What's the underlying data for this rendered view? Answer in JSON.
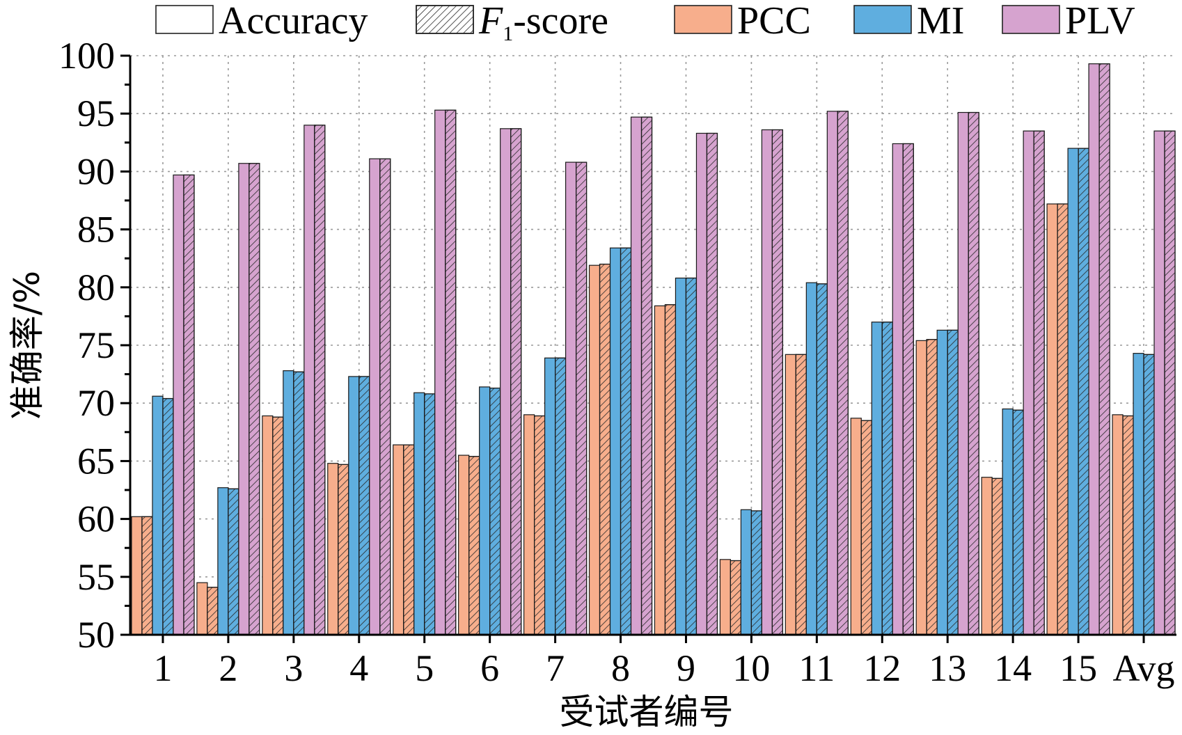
{
  "chart_data": {
    "type": "bar",
    "xlabel": "受试者编号",
    "ylabel": "准确率/%",
    "ylim": [
      50,
      100
    ],
    "yticks": [
      50,
      55,
      60,
      65,
      70,
      75,
      80,
      85,
      90,
      95,
      100
    ],
    "grid": true,
    "legend_position": "top",
    "categories": [
      "1",
      "2",
      "3",
      "4",
      "5",
      "6",
      "7",
      "8",
      "9",
      "10",
      "11",
      "12",
      "13",
      "14",
      "15",
      "Avg"
    ],
    "metrics": [
      {
        "name": "Accuracy",
        "pattern": "solid"
      },
      {
        "name": "F",
        "subscript": "1",
        "suffix": "-score",
        "pattern": "hatched"
      }
    ],
    "series": [
      {
        "name": "PCC",
        "color": "#F7AE8C",
        "accuracy": [
          60.2,
          54.5,
          68.9,
          64.8,
          66.4,
          65.5,
          69.0,
          81.9,
          78.4,
          56.5,
          74.2,
          68.7,
          75.4,
          63.6,
          87.2,
          69.0
        ],
        "f1_score": [
          60.2,
          54.1,
          68.8,
          64.7,
          66.4,
          65.4,
          68.9,
          82.0,
          78.5,
          56.4,
          74.2,
          68.5,
          75.5,
          63.5,
          87.2,
          68.9
        ]
      },
      {
        "name": "MI",
        "color": "#5FAEDF",
        "accuracy": [
          70.6,
          62.7,
          72.8,
          72.3,
          70.9,
          71.4,
          73.9,
          83.4,
          80.8,
          60.8,
          80.4,
          77.0,
          76.3,
          69.5,
          92.0,
          74.3
        ],
        "f1_score": [
          70.4,
          62.6,
          72.7,
          72.3,
          70.8,
          71.3,
          73.9,
          83.4,
          80.8,
          60.7,
          80.3,
          77.0,
          76.3,
          69.4,
          92.0,
          74.2
        ]
      },
      {
        "name": "PLV",
        "color": "#D6A3CF",
        "accuracy": [
          89.7,
          90.7,
          94.0,
          91.1,
          95.3,
          93.7,
          90.8,
          94.7,
          93.3,
          93.6,
          95.2,
          92.4,
          95.1,
          93.5,
          99.3,
          93.5
        ],
        "f1_score": [
          89.7,
          90.7,
          94.0,
          91.1,
          95.3,
          93.7,
          90.8,
          94.7,
          93.3,
          93.6,
          95.2,
          92.4,
          95.1,
          93.5,
          99.3,
          93.5
        ]
      }
    ]
  }
}
